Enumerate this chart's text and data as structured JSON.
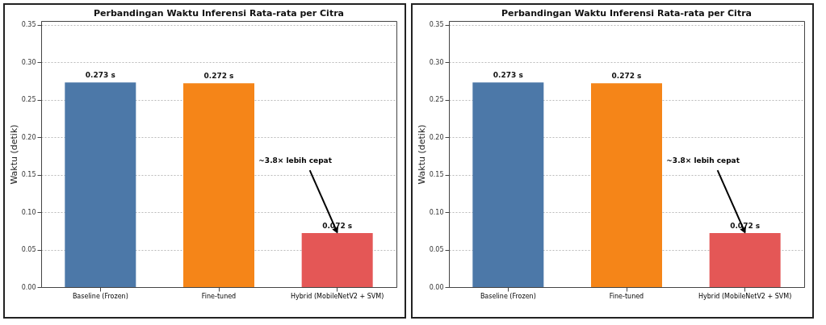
{
  "chart_data": [
    {
      "type": "bar",
      "title": "Perbandingan Waktu Inferensi Rata-rata per Citra",
      "ylabel": "Waktu (detik)",
      "categories": [
        "Baseline (Frozen)",
        "Fine-tuned",
        "Hybrid (MobileNetV2 + SVM)"
      ],
      "values": [
        0.273,
        0.272,
        0.072
      ],
      "colors": [
        "#4c78a8",
        "#f58518",
        "#e45756"
      ],
      "value_labels": [
        "0.273 s",
        "0.272 s",
        "0.072 s"
      ],
      "ylim": [
        0,
        0.355
      ],
      "yticks": [
        {
          "value": 0,
          "label": "0.00"
        },
        {
          "value": 0.05,
          "label": "0.05"
        },
        {
          "value": 0.1,
          "label": "0.10"
        },
        {
          "value": 0.15,
          "label": "0.15"
        },
        {
          "value": 0.2,
          "label": "0.20"
        },
        {
          "value": 0.25,
          "label": "0.25"
        },
        {
          "value": 0.3,
          "label": "0.30"
        },
        {
          "value": 0.35,
          "label": "0.35"
        }
      ],
      "grid": "y",
      "annotations": [
        {
          "text": "~3.8× lebih cepat",
          "x": "Hybrid (MobileNetV2 + SVM)",
          "y": 0.072
        }
      ]
    },
    {
      "type": "bar",
      "title": "Perbandingan Waktu Inferensi Rata-rata per Citra",
      "ylabel": "Waktu (detik)",
      "categories": [
        "Baseline (Frozen)",
        "Fine-tuned",
        "Hybrid (MobileNetV2 + SVM)"
      ],
      "values": [
        0.273,
        0.272,
        0.072
      ],
      "colors": [
        "#4c78a8",
        "#f58518",
        "#e45756"
      ],
      "value_labels": [
        "0.273 s",
        "0.272 s",
        "0.072 s"
      ],
      "ylim": [
        0,
        0.355
      ],
      "yticks": [
        {
          "value": 0,
          "label": "0.00"
        },
        {
          "value": 0.05,
          "label": "0.05"
        },
        {
          "value": 0.1,
          "label": "0.10"
        },
        {
          "value": 0.15,
          "label": "0.15"
        },
        {
          "value": 0.2,
          "label": "0.20"
        },
        {
          "value": 0.25,
          "label": "0.25"
        },
        {
          "value": 0.3,
          "label": "0.30"
        },
        {
          "value": 0.35,
          "label": "0.35"
        }
      ],
      "grid": "y",
      "annotations": [
        {
          "text": "~3.8× lebih cepat",
          "x": "Hybrid (MobileNetV2 + SVM)",
          "y": 0.072
        }
      ]
    }
  ]
}
